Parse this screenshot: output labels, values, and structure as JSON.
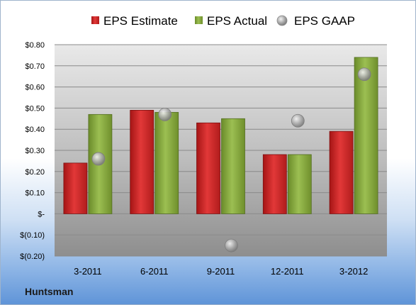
{
  "company": "Huntsman",
  "chart_data": {
    "type": "bar",
    "categories": [
      "3-2011",
      "6-2011",
      "9-2011",
      "12-2011",
      "3-2012"
    ],
    "series": [
      {
        "name": "EPS Estimate",
        "kind": "bar",
        "color": "#d42a2a",
        "values": [
          0.24,
          0.49,
          0.43,
          0.28,
          0.39
        ]
      },
      {
        "name": "EPS Actual",
        "kind": "bar",
        "color": "#86a93c",
        "values": [
          0.47,
          0.48,
          0.45,
          0.28,
          0.74
        ]
      },
      {
        "name": "EPS GAAP",
        "kind": "marker",
        "color": "#a8a8a8",
        "values": [
          0.26,
          0.47,
          -0.15,
          0.44,
          0.66
        ]
      }
    ],
    "ylim": [
      -0.2,
      0.8
    ],
    "yticks": [
      -0.2,
      -0.1,
      0,
      0.1,
      0.2,
      0.3,
      0.4,
      0.5,
      0.6,
      0.7,
      0.8
    ],
    "ytick_labels": [
      "$(0.20)",
      "$(0.10)",
      "$-",
      "$0.10",
      "$0.20",
      "$0.30",
      "$0.40",
      "$0.50",
      "$0.60",
      "$0.70",
      "$0.80"
    ],
    "grid": true,
    "legend": "top"
  }
}
